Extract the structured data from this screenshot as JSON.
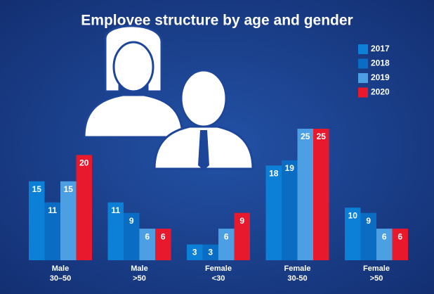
{
  "chart_data": {
    "type": "bar",
    "title": "Employee structure by age and gender",
    "categories": [
      "Male\n30–50",
      "Male\n>50",
      "Female\n<30",
      "Female\n30-50",
      "Female\n>50"
    ],
    "series": [
      {
        "name": "2017",
        "color": "#0c80d6",
        "values": [
          15,
          11,
          3,
          18,
          10
        ]
      },
      {
        "name": "2018",
        "color": "#0a6cc2",
        "values": [
          11,
          9,
          3,
          19,
          9
        ]
      },
      {
        "name": "2019",
        "color": "#4c9fe2",
        "values": [
          15,
          6,
          6,
          25,
          6
        ]
      },
      {
        "name": "2020",
        "color": "#e8192c",
        "values": [
          20,
          6,
          9,
          25,
          6
        ]
      }
    ],
    "ylim": [
      0,
      25
    ],
    "legend": "top-right"
  }
}
